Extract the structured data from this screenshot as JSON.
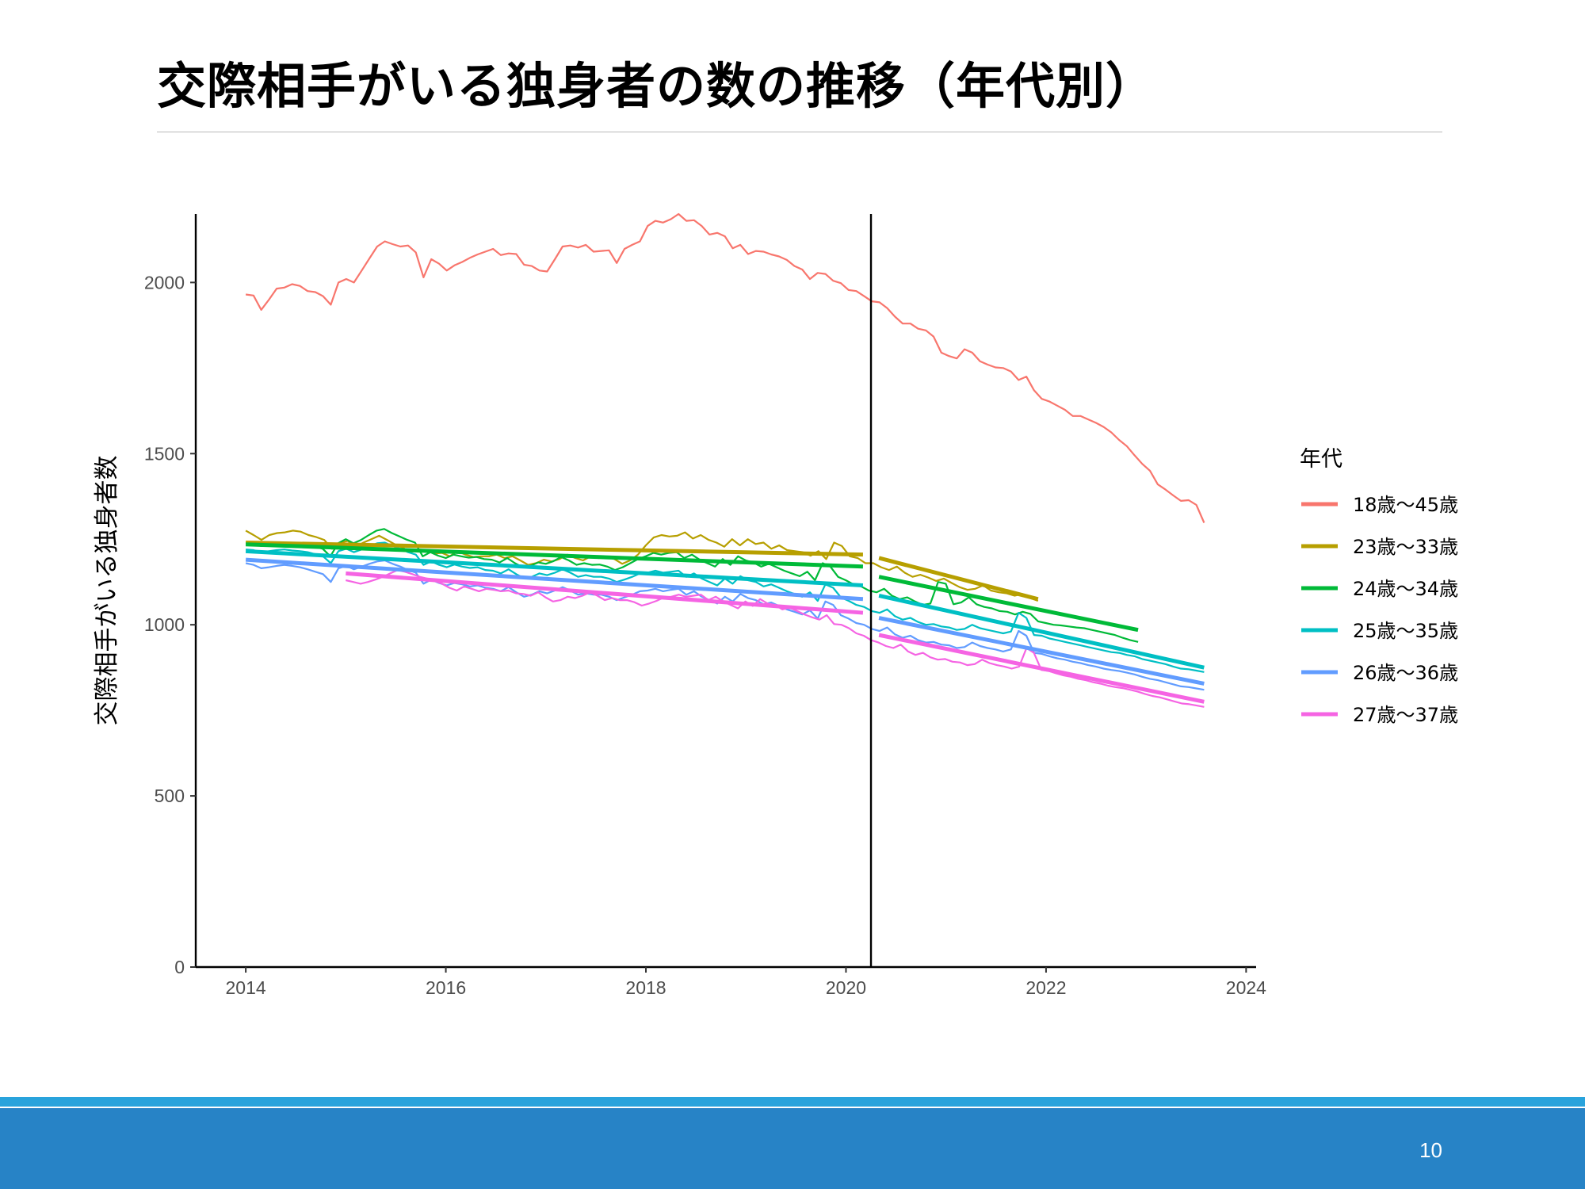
{
  "slide": {
    "title": "交際相手がいる独身者の数の推移（年代別）",
    "page_number": "10"
  },
  "colors": {
    "footer_bar": "#2783c6",
    "footer_accent": "#29a3dc"
  },
  "chart_data": {
    "type": "line",
    "title": "",
    "xlabel": "",
    "ylabel": "交際相手がいる独身者数",
    "xlim": [
      2013.5,
      2024.1
    ],
    "ylim": [
      0,
      2200
    ],
    "x_ticks": [
      2014,
      2016,
      2018,
      2020,
      2022,
      2024
    ],
    "y_ticks": [
      0,
      500,
      1000,
      1500,
      2000
    ],
    "grid": false,
    "vertical_reference_line": 2020.25,
    "legend": {
      "title": "年代",
      "position": "right"
    },
    "series": [
      {
        "name": "18歳～45歳",
        "color": "#F8766D",
        "x_start": 2014.0,
        "x_end": 2023.58,
        "values": [
          1965,
          1962,
          1920,
          1950,
          1982,
          1985,
          1995,
          1990,
          1975,
          1972,
          1960,
          1935,
          2000,
          2010,
          2000,
          2035,
          2070,
          2105,
          2120,
          2112,
          2105,
          2108,
          2088,
          2015,
          2068,
          2055,
          2035,
          2050,
          2060,
          2072,
          2082,
          2090,
          2098,
          2080,
          2085,
          2083,
          2052,
          2048,
          2035,
          2032,
          2068,
          2105,
          2108,
          2102,
          2110,
          2090,
          2092,
          2094,
          2057,
          2098,
          2110,
          2120,
          2165,
          2180,
          2175,
          2185,
          2200,
          2180,
          2182,
          2165,
          2140,
          2145,
          2135,
          2100,
          2110,
          2083,
          2092,
          2090,
          2082,
          2076,
          2066,
          2048,
          2038,
          2010,
          2028,
          2025,
          2005,
          1998,
          1978,
          1975,
          1960,
          1945,
          1942,
          1925,
          1900,
          1880,
          1880,
          1865,
          1860,
          1842,
          1795,
          1785,
          1778,
          1805,
          1795,
          1770,
          1760,
          1752,
          1750,
          1740,
          1715,
          1725,
          1685,
          1660,
          1652,
          1640,
          1628,
          1610,
          1610,
          1600,
          1590,
          1578,
          1562,
          1540,
          1522,
          1495,
          1470,
          1450,
          1410,
          1395,
          1378,
          1362,
          1364,
          1350,
          1298
        ]
      },
      {
        "name": "23歳～33歳",
        "color": "#B79F00",
        "x_start": 2014.0,
        "x_end": 2021.92,
        "values": [
          1275,
          1262,
          1248,
          1262,
          1268,
          1270,
          1275,
          1272,
          1262,
          1256,
          1248,
          1222,
          1240,
          1245,
          1228,
          1240,
          1250,
          1260,
          1248,
          1235,
          1225,
          1212,
          1220,
          1218,
          1208,
          1210,
          1200,
          1215,
          1205,
          1198,
          1200,
          1200,
          1205,
          1195,
          1200,
          1188,
          1175,
          1180,
          1190,
          1185,
          1192,
          1205,
          1195,
          1188,
          1200,
          1195,
          1198,
          1192,
          1178,
          1188,
          1205,
          1232,
          1255,
          1262,
          1258,
          1260,
          1270,
          1252,
          1262,
          1248,
          1240,
          1228,
          1250,
          1232,
          1250,
          1236,
          1240,
          1222,
          1232,
          1218,
          1215,
          1212,
          1202,
          1215,
          1192,
          1240,
          1230,
          1200,
          1195,
          1180,
          1180,
          1168,
          1160,
          1170,
          1152,
          1140,
          1146,
          1138,
          1128,
          1135,
          1122,
          1110,
          1102,
          1105,
          1115,
          1100,
          1095,
          1092,
          1085,
          1090,
          1078,
          1070
        ],
        "fit_pre": {
          "x": [
            2014.0,
            2020.17
          ],
          "y": [
            1240,
            1205
          ]
        },
        "fit_post": {
          "x": [
            2020.33,
            2021.92
          ],
          "y": [
            1195,
            1075
          ]
        }
      },
      {
        "name": "24歳～34歳",
        "color": "#00BA38",
        "x_start": 2014.0,
        "x_end": 2022.92,
        "values": [
          1238,
          1236,
          1230,
          1232,
          1238,
          1240,
          1236,
          1235,
          1232,
          1228,
          1222,
          1200,
          1238,
          1250,
          1238,
          1248,
          1262,
          1275,
          1280,
          1268,
          1258,
          1248,
          1240,
          1200,
          1212,
          1202,
          1195,
          1205,
          1200,
          1196,
          1198,
          1192,
          1190,
          1182,
          1195,
          1180,
          1168,
          1172,
          1182,
          1178,
          1186,
          1198,
          1188,
          1175,
          1180,
          1175,
          1176,
          1170,
          1160,
          1168,
          1180,
          1192,
          1200,
          1210,
          1205,
          1210,
          1212,
          1195,
          1205,
          1190,
          1180,
          1170,
          1192,
          1175,
          1200,
          1188,
          1182,
          1170,
          1178,
          1168,
          1158,
          1150,
          1142,
          1155,
          1130,
          1180,
          1170,
          1140,
          1130,
          1118,
          1112,
          1100,
          1095,
          1105,
          1085,
          1075,
          1080,
          1068,
          1058,
          1062,
          1125,
          1120,
          1060,
          1065,
          1080,
          1060,
          1052,
          1048,
          1040,
          1038,
          1030,
          1038,
          1032,
          1010,
          1005,
          1000,
          998,
          995,
          992,
          990,
          985,
          980,
          975,
          970,
          962,
          955,
          950
        ],
        "fit_pre": {
          "x": [
            2014.0,
            2020.17
          ],
          "y": [
            1235,
            1170
          ]
        },
        "fit_post": {
          "x": [
            2020.33,
            2022.92
          ],
          "y": [
            1140,
            985
          ]
        }
      },
      {
        "name": "25歳～35歳",
        "color": "#00BFC4",
        "x_start": 2014.0,
        "x_end": 2023.58,
        "values": [
          1220,
          1218,
          1212,
          1215,
          1218,
          1220,
          1217,
          1215,
          1212,
          1206,
          1200,
          1180,
          1215,
          1222,
          1212,
          1220,
          1230,
          1238,
          1240,
          1230,
          1222,
          1212,
          1205,
          1175,
          1185,
          1175,
          1168,
          1176,
          1170,
          1166,
          1168,
          1160,
          1158,
          1150,
          1162,
          1148,
          1136,
          1140,
          1150,
          1145,
          1152,
          1162,
          1152,
          1140,
          1145,
          1140,
          1140,
          1135,
          1125,
          1132,
          1140,
          1150,
          1152,
          1158,
          1152,
          1155,
          1158,
          1140,
          1150,
          1135,
          1125,
          1115,
          1135,
          1120,
          1142,
          1130,
          1125,
          1112,
          1118,
          1108,
          1098,
          1090,
          1082,
          1095,
          1070,
          1118,
          1108,
          1080,
          1070,
          1058,
          1052,
          1040,
          1035,
          1045,
          1025,
          1015,
          1020,
          1008,
          1000,
          1002,
          995,
          992,
          985,
          988,
          1000,
          990,
          985,
          980,
          975,
          980,
          1035,
          1020,
          970,
          968,
          960,
          955,
          950,
          945,
          940,
          935,
          930,
          925,
          920,
          918,
          912,
          908,
          900,
          895,
          890,
          885,
          878,
          872,
          870,
          866,
          862
        ],
        "fit_pre": {
          "x": [
            2014.0,
            2020.17
          ],
          "y": [
            1215,
            1115
          ]
        },
        "fit_post": {
          "x": [
            2020.33,
            2023.58
          ],
          "y": [
            1085,
            875
          ]
        }
      },
      {
        "name": "26歳～36歳",
        "color": "#619CFF",
        "x_start": 2014.0,
        "x_end": 2023.58,
        "values": [
          1180,
          1175,
          1165,
          1168,
          1172,
          1175,
          1172,
          1168,
          1162,
          1155,
          1148,
          1125,
          1165,
          1172,
          1162,
          1170,
          1178,
          1185,
          1188,
          1178,
          1170,
          1160,
          1152,
          1120,
          1132,
          1122,
          1115,
          1122,
          1118,
          1112,
          1115,
          1108,
          1105,
          1098,
          1110,
          1095,
          1082,
          1088,
          1098,
          1092,
          1100,
          1110,
          1100,
          1088,
          1092,
          1088,
          1088,
          1082,
          1072,
          1080,
          1088,
          1098,
          1100,
          1105,
          1098,
          1102,
          1105,
          1088,
          1098,
          1082,
          1072,
          1062,
          1082,
          1068,
          1090,
          1078,
          1072,
          1060,
          1065,
          1055,
          1045,
          1038,
          1030,
          1042,
          1018,
          1068,
          1058,
          1028,
          1018,
          1005,
          1000,
          988,
          982,
          992,
          972,
          962,
          968,
          955,
          948,
          950,
          942,
          940,
          932,
          935,
          948,
          938,
          932,
          928,
          922,
          928,
          982,
          968,
          918,
          915,
          908,
          902,
          898,
          892,
          888,
          882,
          878,
          872,
          868,
          865,
          860,
          855,
          848,
          842,
          838,
          832,
          826,
          820,
          818,
          814,
          810
        ],
        "fit_pre": {
          "x": [
            2014.0,
            2020.17
          ],
          "y": [
            1190,
            1075
          ]
        },
        "fit_post": {
          "x": [
            2020.33,
            2023.58
          ],
          "y": [
            1020,
            828
          ]
        }
      },
      {
        "name": "27歳～37歳",
        "color": "#F564E3",
        "x_start": 2015.0,
        "x_end": 2023.58,
        "values": [
          1130,
          1125,
          1120,
          1125,
          1132,
          1140,
          1150,
          1160,
          1155,
          1148,
          1140,
          1135,
          1128,
          1120,
          1108,
          1100,
          1112,
          1105,
          1098,
          1105,
          1102,
          1098,
          1100,
          1092,
          1090,
          1085,
          1095,
          1080,
          1068,
          1072,
          1082,
          1078,
          1085,
          1095,
          1085,
          1072,
          1078,
          1072,
          1072,
          1066,
          1056,
          1062,
          1070,
          1080,
          1082,
          1088,
          1082,
          1085,
          1088,
          1072,
          1082,
          1068,
          1058,
          1048,
          1068,
          1055,
          1075,
          1062,
          1058,
          1045,
          1050,
          1040,
          1030,
          1022,
          1015,
          1028,
          1002,
          1000,
          990,
          975,
          968,
          955,
          948,
          938,
          932,
          942,
          922,
          912,
          918,
          905,
          898,
          900,
          892,
          890,
          882,
          885,
          898,
          888,
          882,
          878,
          872,
          878,
          932,
          918,
          868,
          865,
          858,
          852,
          848,
          842,
          838,
          832,
          828,
          822,
          818,
          815,
          810,
          805,
          798,
          792,
          788,
          782,
          776,
          770,
          768,
          764,
          760
        ],
        "fit_pre": {
          "x": [
            2015.0,
            2020.17
          ],
          "y": [
            1150,
            1035
          ]
        },
        "fit_post": {
          "x": [
            2020.33,
            2023.58
          ],
          "y": [
            970,
            775
          ]
        }
      }
    ]
  }
}
